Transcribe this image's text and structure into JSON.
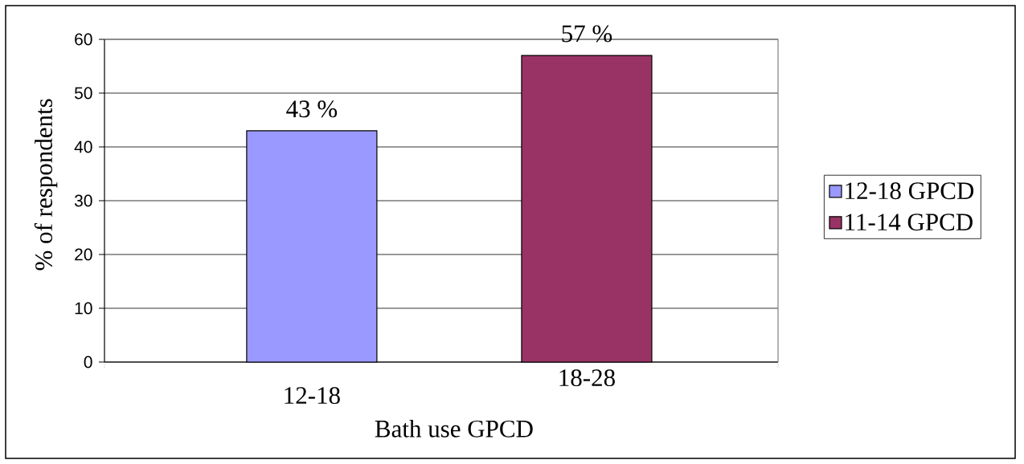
{
  "chart_data": {
    "type": "bar",
    "xlabel": "Bath use GPCD",
    "ylabel": "% of respondents",
    "categories": [
      "12-18",
      "18-28"
    ],
    "series": [
      {
        "name": "12-18 GPCD",
        "color": "#9999ff",
        "values": [
          43,
          null
        ],
        "value_labels": [
          "43 %",
          null
        ]
      },
      {
        "name": "11-14 GPCD",
        "color": "#993366",
        "values": [
          null,
          57
        ],
        "value_labels": [
          null,
          "57 %"
        ]
      }
    ],
    "ylim": [
      0,
      60
    ],
    "yticks": [
      0,
      10,
      20,
      30,
      40,
      50,
      60
    ],
    "grid": "y",
    "legend": "right"
  }
}
